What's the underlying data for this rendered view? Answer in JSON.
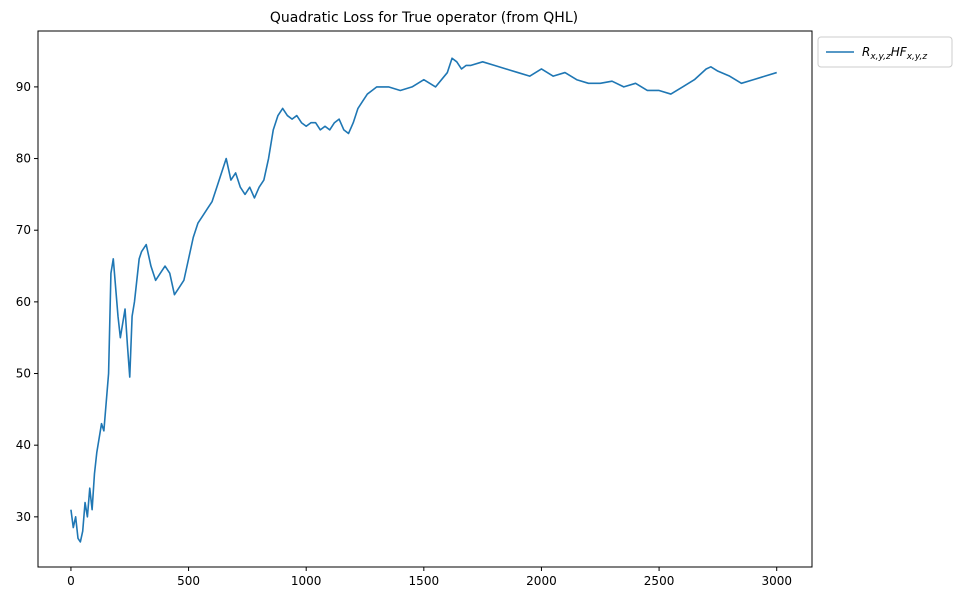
{
  "chart_data": {
    "type": "line",
    "title": "Quadratic Loss for True operator (from QHL)",
    "xlabel": "",
    "ylabel": "",
    "xlim": [
      -140,
      3150
    ],
    "ylim": [
      23,
      97.8
    ],
    "xticks": [
      0,
      500,
      1000,
      1500,
      2000,
      2500,
      3000
    ],
    "yticks": [
      30,
      40,
      50,
      60,
      70,
      80,
      90
    ],
    "xtick_labels": [
      "0",
      "500",
      "1000",
      "1500",
      "2000",
      "2500",
      "3000"
    ],
    "ytick_labels": [
      "30",
      "40",
      "50",
      "60",
      "70",
      "80",
      "90"
    ],
    "grid": false,
    "legend_position": "outside-top-right",
    "series": [
      {
        "name": "R_{x,y,z}HF_{x,y,z}",
        "color": "#1f77b4",
        "x": [
          0,
          10,
          20,
          30,
          40,
          50,
          60,
          70,
          80,
          90,
          100,
          110,
          120,
          130,
          140,
          150,
          160,
          170,
          180,
          190,
          200,
          210,
          220,
          230,
          240,
          250,
          260,
          270,
          280,
          290,
          300,
          320,
          340,
          360,
          380,
          400,
          420,
          440,
          460,
          480,
          500,
          520,
          540,
          560,
          580,
          600,
          620,
          640,
          660,
          680,
          700,
          720,
          740,
          760,
          780,
          800,
          820,
          840,
          860,
          880,
          900,
          920,
          940,
          960,
          980,
          1000,
          1020,
          1040,
          1060,
          1080,
          1100,
          1120,
          1140,
          1160,
          1180,
          1200,
          1220,
          1240,
          1260,
          1280,
          1300,
          1350,
          1400,
          1450,
          1500,
          1550,
          1600,
          1620,
          1640,
          1660,
          1680,
          1700,
          1750,
          1800,
          1850,
          1900,
          1950,
          2000,
          2050,
          2100,
          2150,
          2200,
          2250,
          2300,
          2350,
          2400,
          2450,
          2500,
          2550,
          2600,
          2650,
          2700,
          2720,
          2750,
          2800,
          2850,
          2900,
          2950,
          3000
        ],
        "values": [
          31,
          28.5,
          30,
          27,
          26.5,
          28,
          32,
          30,
          34,
          31,
          36,
          39,
          41,
          43,
          42,
          46,
          50,
          64,
          66,
          62,
          58,
          55,
          57,
          59,
          54,
          49.5,
          58,
          60,
          63,
          66,
          67,
          68,
          65,
          63,
          64,
          65,
          64,
          61,
          62,
          63,
          66,
          69,
          71,
          72,
          73,
          74,
          76,
          78,
          80,
          77,
          78,
          76,
          75,
          76,
          74.5,
          76,
          77,
          80,
          84,
          86,
          87,
          86,
          85.5,
          86,
          85,
          84.5,
          85,
          85,
          84,
          84.5,
          84,
          85,
          85.5,
          84,
          83.5,
          85,
          87,
          88,
          89,
          89.5,
          90,
          90,
          89.5,
          90,
          91,
          90,
          92,
          94,
          93.5,
          92.5,
          93,
          93,
          93.5,
          93,
          92.5,
          92,
          91.5,
          92.5,
          91.5,
          92,
          91,
          90.5,
          90.5,
          90.8,
          90,
          90.5,
          89.5,
          89.5,
          89,
          90,
          91,
          92.5,
          92.8,
          92.2,
          91.5,
          90.5,
          91,
          91.5,
          92
        ]
      }
    ]
  }
}
